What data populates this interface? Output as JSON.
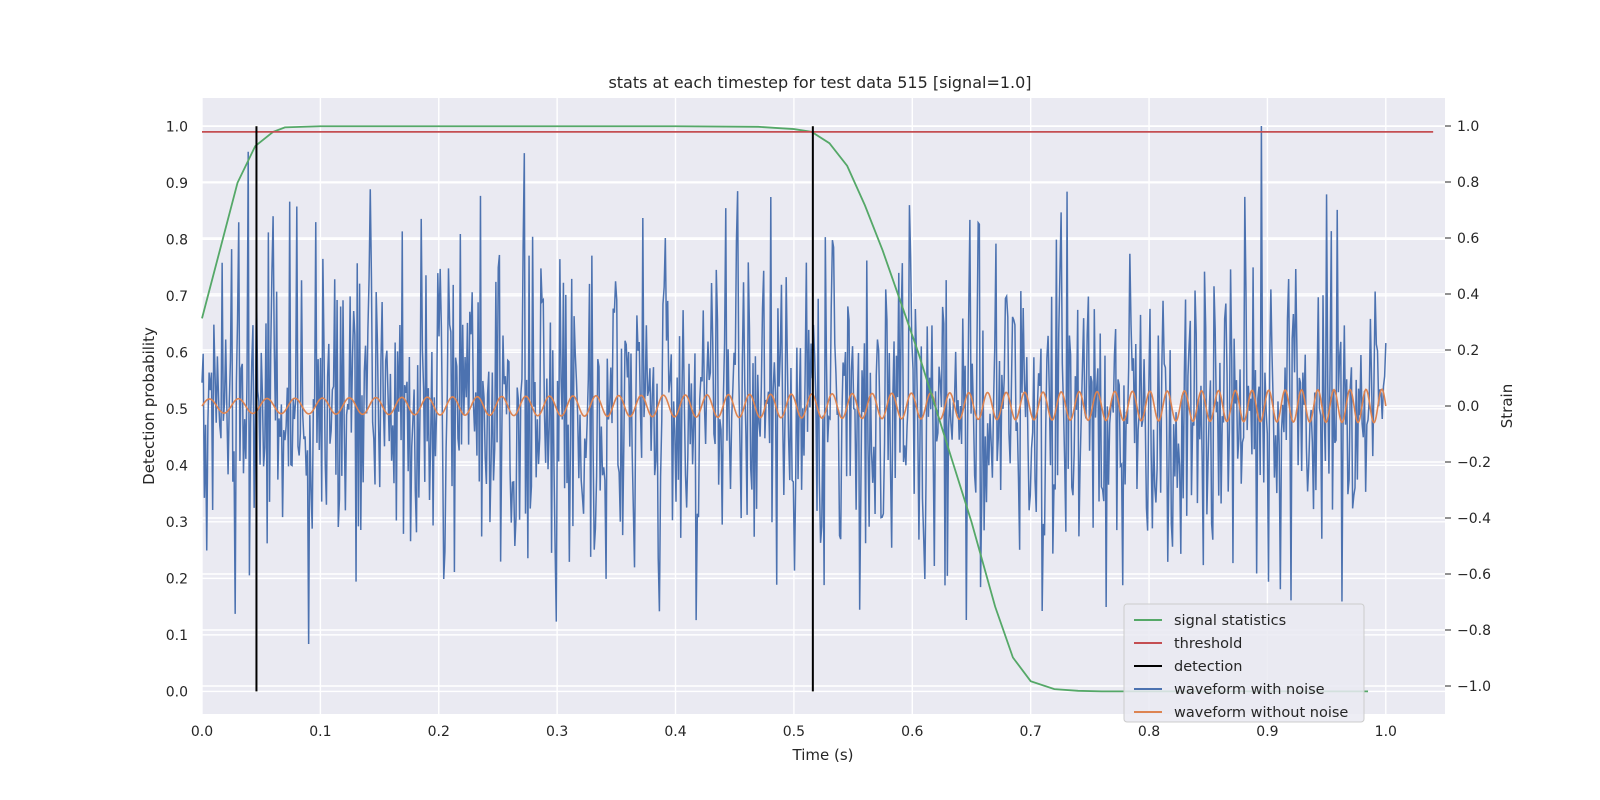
{
  "chart_data": {
    "type": "line",
    "title": "stats at each timestep for test data 515 [signal=1.0]",
    "xlabel": "Time (s)",
    "ylabel": "Detection probability",
    "y2label": "Strain",
    "xlim": [
      0.0,
      1.05
    ],
    "ylim": [
      -0.04,
      1.05
    ],
    "y2lim": [
      -1.1,
      1.1
    ],
    "grid": true,
    "legend_position": "lower-right",
    "x_ticks": [
      "0.0",
      "0.1",
      "0.2",
      "0.3",
      "0.4",
      "0.5",
      "0.6",
      "0.7",
      "0.8",
      "0.9",
      "1.0"
    ],
    "y_ticks": [
      "0.0",
      "0.1",
      "0.2",
      "0.3",
      "0.4",
      "0.5",
      "0.6",
      "0.7",
      "0.8",
      "0.9",
      "1.0"
    ],
    "y2_ticks": [
      "−1.0",
      "−0.8",
      "−0.6",
      "−0.4",
      "−0.2",
      "0.0",
      "0.2",
      "0.4",
      "0.6",
      "0.8",
      "1.0"
    ],
    "colors": {
      "background": "#eaeaf2",
      "grid": "#ffffff",
      "signal_statistics": "#55a868",
      "threshold": "#c44e52",
      "detection": "#000000",
      "waveform_with_noise": "#4c72b0",
      "waveform_without_noise": "#dd8452"
    },
    "series": [
      {
        "name": "signal statistics",
        "axis": "left",
        "x": [
          0.0,
          0.015,
          0.03,
          0.045,
          0.06,
          0.07,
          0.1,
          0.2,
          0.3,
          0.4,
          0.47,
          0.5,
          0.515,
          0.53,
          0.545,
          0.56,
          0.575,
          0.59,
          0.605,
          0.62,
          0.635,
          0.65,
          0.67,
          0.685,
          0.7,
          0.72,
          0.74,
          0.76,
          0.8,
          0.85,
          0.9,
          0.95,
          0.985
        ],
        "values": [
          0.66,
          0.78,
          0.9,
          0.965,
          0.99,
          0.998,
          1.0,
          1.0,
          1.0,
          1.0,
          0.999,
          0.995,
          0.99,
          0.97,
          0.93,
          0.86,
          0.78,
          0.69,
          0.6,
          0.5,
          0.4,
          0.3,
          0.15,
          0.06,
          0.018,
          0.004,
          0.001,
          0.0,
          0.0,
          0.0,
          0.0,
          0.0,
          0.0
        ]
      },
      {
        "name": "threshold",
        "axis": "left",
        "x": [
          0.0,
          1.04
        ],
        "values": [
          0.99,
          0.99
        ]
      },
      {
        "name": "detection",
        "axis": "left",
        "segments": [
          {
            "x": 0.046,
            "y": [
              0.0,
              1.0
            ]
          },
          {
            "x": 0.516,
            "y": [
              0.0,
              1.0
            ]
          }
        ]
      },
      {
        "name": "waveform with noise",
        "axis": "right",
        "x_range": [
          0.0,
          1.0
        ],
        "samples": 1000,
        "std": 0.3,
        "peak": {
          "x": 0.895,
          "value": 1.0
        }
      },
      {
        "name": "waveform without noise",
        "axis": "right",
        "x_range": [
          0.0,
          1.0
        ],
        "amplitude_start": 0.025,
        "amplitude_end": 0.06,
        "frequency_start": 40,
        "frequency_end": 75
      }
    ],
    "legend": [
      "signal statistics",
      "threshold",
      "detection",
      "waveform with noise",
      "waveform without noise"
    ]
  }
}
